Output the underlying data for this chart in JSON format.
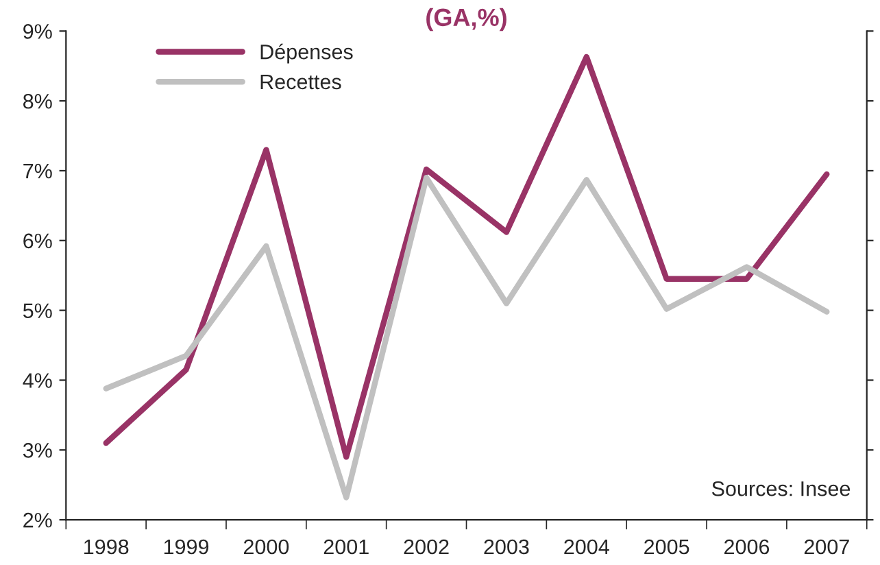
{
  "chart_data": {
    "type": "line",
    "title": "(GA,%)",
    "categories": [
      "1998",
      "1999",
      "2000",
      "2001",
      "2002",
      "2003",
      "2004",
      "2005",
      "2006",
      "2007"
    ],
    "series": [
      {
        "name": "Dépenses",
        "color": "#993366",
        "values": [
          3.1,
          4.15,
          7.3,
          2.9,
          7.02,
          6.12,
          8.63,
          5.45,
          5.45,
          6.95
        ]
      },
      {
        "name": "Recettes",
        "color": "#c0c0c0",
        "values": [
          3.88,
          4.35,
          5.92,
          2.32,
          6.9,
          5.1,
          6.87,
          5.02,
          5.62,
          4.98
        ]
      }
    ],
    "ylim": [
      2,
      9
    ],
    "yticks": [
      {
        "value": 2,
        "label": "2%"
      },
      {
        "value": 3,
        "label": "3%"
      },
      {
        "value": 4,
        "label": "4%"
      },
      {
        "value": 5,
        "label": "5%"
      },
      {
        "value": 6,
        "label": "6%"
      },
      {
        "value": 7,
        "label": "7%"
      },
      {
        "value": 8,
        "label": "8%"
      },
      {
        "value": 9,
        "label": "9%"
      }
    ],
    "annotations": [
      "Sources: Insee"
    ],
    "legend": "top left",
    "grid": false,
    "marker": "none",
    "line_style": "solid"
  }
}
